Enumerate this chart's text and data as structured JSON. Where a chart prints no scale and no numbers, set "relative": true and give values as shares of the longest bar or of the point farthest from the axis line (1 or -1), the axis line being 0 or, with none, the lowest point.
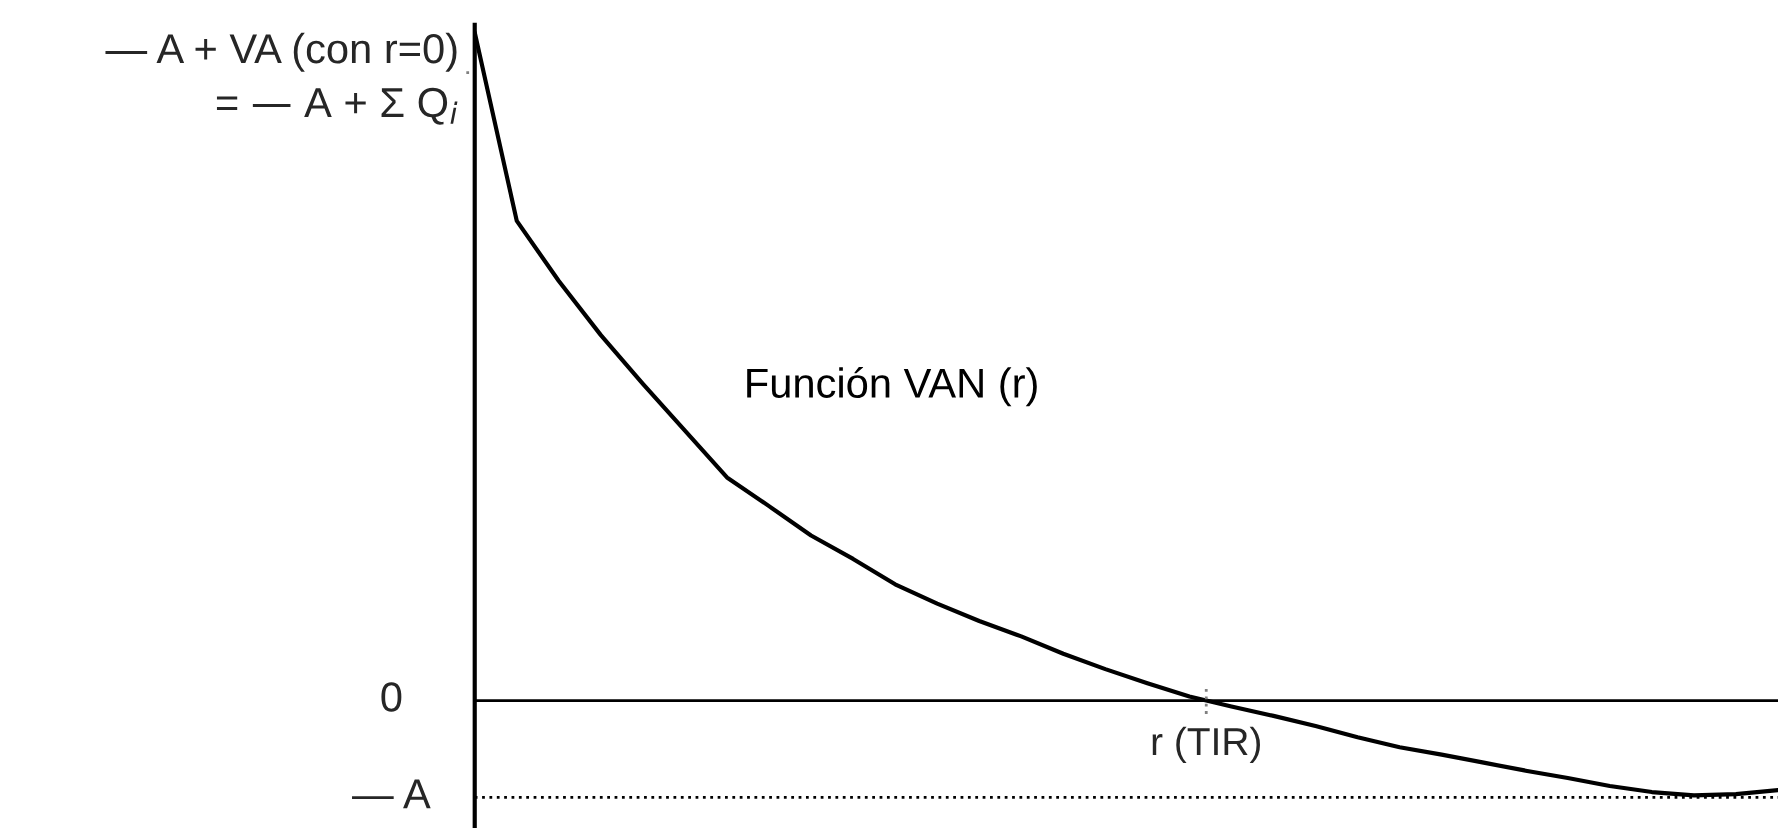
{
  "chart_data": {
    "type": "line",
    "relative": true,
    "categories": [
      null,
      null,
      null,
      null,
      null,
      null,
      null,
      null,
      null,
      null,
      null,
      null,
      null,
      null,
      null,
      null,
      null,
      null,
      null,
      null,
      null,
      null,
      null,
      null,
      null,
      null,
      null,
      null,
      null,
      null,
      null,
      null
    ],
    "series": [
      {
        "name": "Función VAN (r)",
        "color": "#000000",
        "values": [
          1.0,
          0.718,
          0.628,
          0.547,
          0.474,
          0.404,
          0.334,
          0.291,
          0.247,
          0.212,
          0.174,
          0.145,
          0.119,
          0.096,
          0.07,
          0.047,
          0.026,
          0.006,
          -0.009,
          -0.023,
          -0.038,
          -0.055,
          -0.07,
          -0.081,
          -0.093,
          -0.105,
          -0.116,
          -0.128,
          -0.137,
          -0.142,
          -0.14,
          -0.134
        ]
      }
    ],
    "ref_lines": [
      {
        "axis": "y",
        "value": 0,
        "label": "0",
        "line_style": "solid",
        "color": "#000000"
      },
      {
        "axis": "y",
        "value": -0.145,
        "label": "— A",
        "line_style": "dotted",
        "color": "#000000"
      }
    ],
    "annotations": [
      "— A + VA (con r=0)\n= — A + Σ Q$_{i}$",
      "r (TIR)"
    ],
    "grid": false,
    "marker": "none",
    "line_style": "solid"
  }
}
